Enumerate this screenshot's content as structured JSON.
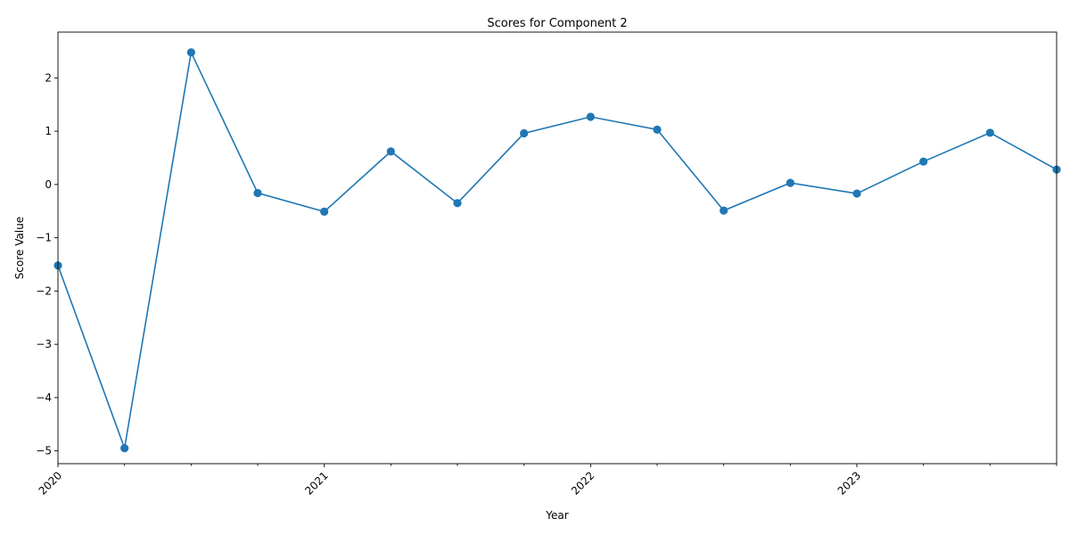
{
  "chart_data": {
    "type": "line",
    "title": "Scores for Component 2",
    "xlabel": "Year",
    "ylabel": "Score Value",
    "x_tick_labels": [
      "2020",
      "2021",
      "2022",
      "2023"
    ],
    "y_tick_labels": [
      "−5",
      "−4",
      "−3",
      "−2",
      "−1",
      "0",
      "1",
      "2"
    ],
    "ylim": [
      -5.24,
      2.86
    ],
    "xlim": [
      "2020-01",
      "2023-10"
    ],
    "grid": false,
    "legend": "none",
    "series": [
      {
        "color": "#1f77b4",
        "marker": "circle",
        "x": [
          "2020-01",
          "2020-04",
          "2020-07",
          "2020-10",
          "2021-01",
          "2021-04",
          "2021-07",
          "2021-10",
          "2022-01",
          "2022-04",
          "2022-07",
          "2022-10",
          "2023-01",
          "2023-04",
          "2023-07",
          "2023-10"
        ],
        "values": [
          -1.52,
          -4.95,
          2.48,
          -0.16,
          -0.51,
          0.62,
          -0.35,
          0.96,
          1.27,
          1.03,
          -0.49,
          0.03,
          -0.17,
          0.43,
          0.97,
          0.28
        ]
      }
    ]
  }
}
